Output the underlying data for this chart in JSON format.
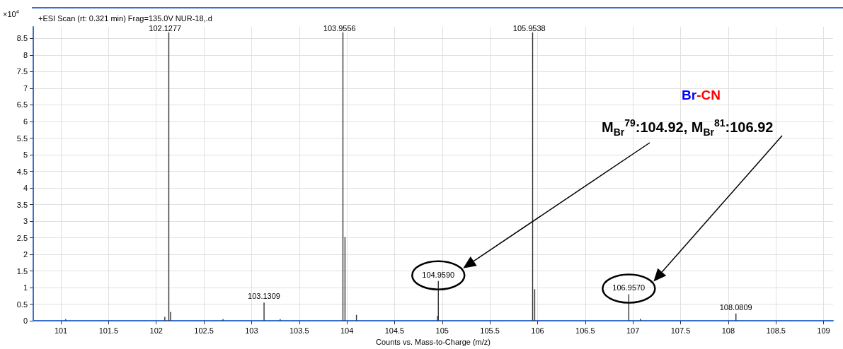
{
  "chart_data": {
    "type": "bar",
    "title": "+ESI Scan (rt: 0.321 min) Frag=135.0V NUR-18,.d",
    "xlabel": "Counts vs. Mass-to-Charge (m/z)",
    "ylabel": "×10$^{4}$",
    "x": [
      101.05,
      102.09,
      102.15,
      102.7,
      103.1309,
      103.3,
      103.98,
      104.1,
      104.95,
      104.959,
      105.97,
      106.957,
      107.08,
      108.0809
    ],
    "series": [
      {
        "color": "#333333",
        "values": [
          0.05,
          0.12,
          0.27,
          0.05,
          0.55,
          0.05,
          2.52,
          0.18,
          0.15,
          1.2,
          0.95,
          0.8,
          0.06,
          0.22
        ]
      }
    ],
    "ref_lines": [
      {
        "axis": "x",
        "value": 102.1277,
        "label": "102.1277",
        "color": "#333333"
      },
      {
        "axis": "x",
        "value": 103.9556,
        "label": "103.9556",
        "color": "#333333"
      },
      {
        "axis": "x",
        "value": 105.9538,
        "label": "105.9538",
        "color": "#333333"
      }
    ],
    "xlim": [
      100.71,
      109.1
    ],
    "xticks": [
      101,
      101.5,
      102,
      102.5,
      103,
      103.5,
      104,
      104.5,
      105,
      105.5,
      106,
      106.5,
      107,
      107.5,
      108,
      108.5,
      109
    ],
    "ylim": [
      0,
      8.85
    ],
    "yticks": [
      0,
      0.5,
      1,
      1.5,
      2,
      2.5,
      3,
      3.5,
      4,
      4.5,
      5,
      5.5,
      6,
      6.5,
      7,
      7.5,
      8,
      8.5
    ],
    "grid": true,
    "annotations": [
      {
        "text": "103.1309",
        "x": 103.1309,
        "y": 0.55
      },
      {
        "text": "104.9590",
        "x": 104.959,
        "y": 1.2
      },
      {
        "text": "106.9570",
        "x": 106.957,
        "y": 0.8
      },
      {
        "text": "108.0809",
        "x": 108.0809,
        "y": 0.22
      },
      "Br-CN",
      "M$_{Br}$$^{79}$:104.92,  M$_{Br}$$^{81}$:106.92"
    ]
  }
}
